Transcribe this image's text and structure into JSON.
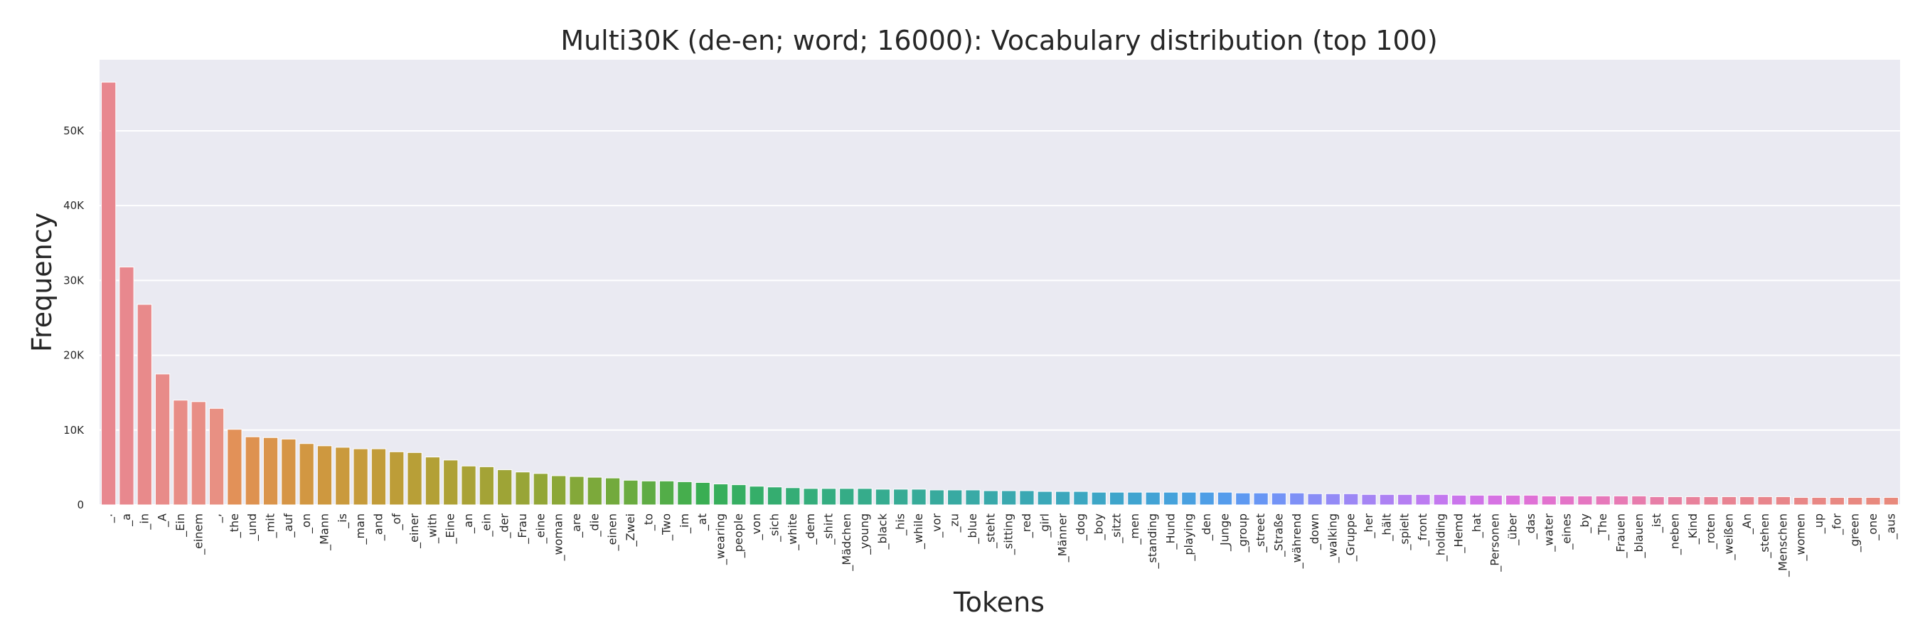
{
  "chart_data": {
    "type": "bar",
    "title": "Multi30K (de-en; word; 16000): Vocabulary distribution (top 100)",
    "xlabel": "Tokens",
    "ylabel": "Frequency",
    "ylim": [
      0,
      59500
    ],
    "yticks": [
      0,
      10000,
      20000,
      30000,
      40000,
      50000
    ],
    "ytick_labels": [
      "0",
      "10K",
      "20K",
      "30K",
      "40K",
      "50K"
    ],
    "grid": true,
    "categories": [
      "_.",
      "_a",
      "_in",
      "_A",
      "_Ein",
      "_einem",
      "_,",
      "_the",
      "_und",
      "_mit",
      "_auf",
      "_on",
      "_Mann",
      "_is",
      "_man",
      "_and",
      "_of",
      "_einer",
      "_with",
      "_Eine",
      "_an",
      "_ein",
      "_der",
      "_Frau",
      "_eine",
      "_woman",
      "_are",
      "_die",
      "_einen",
      "_Zwei",
      "_to",
      "_Two",
      "_im",
      "_at",
      "_wearing",
      "_people",
      "_von",
      "_sich",
      "_white",
      "_dem",
      "_shirt",
      "_Mädchen",
      "_young",
      "_black",
      "_his",
      "_while",
      "_vor",
      "_zu",
      "_blue",
      "_steht",
      "_sitting",
      "_red",
      "_girl",
      "_Männer",
      "_dog",
      "_boy",
      "_sitzt",
      "_men",
      "_standing",
      "_Hund",
      "_playing",
      "_den",
      "_Junge",
      "_group",
      "_street",
      "_Straße",
      "_während",
      "_down",
      "_walking",
      "_Gruppe",
      "_her",
      "_hält",
      "_spielt",
      "_front",
      "_holding",
      "_Hemd",
      "_hat",
      "_Personen",
      "_über",
      "_das",
      "_water",
      "_eines",
      "_by",
      "_The",
      "_Frauen",
      "_blauen",
      "_ist",
      "_neben",
      "_Kind",
      "_roten",
      "_weißen",
      "_An",
      "_stehen",
      "_Menschen",
      "_women",
      "_up",
      "_for",
      "_green",
      "_one",
      "_aus"
    ],
    "values": [
      56500,
      31800,
      26800,
      17500,
      14000,
      13800,
      12900,
      10100,
      9100,
      9000,
      8800,
      8200,
      7900,
      7700,
      7500,
      7500,
      7100,
      7000,
      6400,
      6000,
      5200,
      5100,
      4700,
      4400,
      4200,
      3900,
      3800,
      3700,
      3600,
      3300,
      3200,
      3200,
      3100,
      3000,
      2800,
      2700,
      2500,
      2400,
      2300,
      2200,
      2200,
      2200,
      2200,
      2100,
      2100,
      2100,
      2000,
      2000,
      2000,
      1900,
      1900,
      1900,
      1800,
      1800,
      1800,
      1700,
      1700,
      1700,
      1700,
      1700,
      1700,
      1700,
      1700,
      1600,
      1600,
      1600,
      1600,
      1500,
      1500,
      1500,
      1400,
      1400,
      1400,
      1400,
      1400,
      1300,
      1300,
      1300,
      1300,
      1300,
      1200,
      1200,
      1200,
      1200,
      1200,
      1200,
      1100,
      1100,
      1100,
      1100,
      1100,
      1100,
      1100,
      1100,
      1000,
      1000,
      1000,
      1000,
      1000,
      1000
    ],
    "colors": [
      "#e8878f",
      "#e8888e",
      "#e88a8b",
      "#e88b89",
      "#e88d87",
      "#e88e85",
      "#e89083",
      "#e29158",
      "#de9250",
      "#da944b",
      "#d69546",
      "#d29742",
      "#ce983f",
      "#ca9a3d",
      "#c69b3b",
      "#c29c39",
      "#bd9d38",
      "#b89f37",
      "#b3a036",
      "#aea136",
      "#a9a236",
      "#a4a336",
      "#9ea436",
      "#98a537",
      "#92a637",
      "#8ba738",
      "#84a839",
      "#7ca93b",
      "#73aa3d",
      "#6aab40",
      "#5fac44",
      "#53ad48",
      "#46ae4d",
      "#3aae53",
      "#37ae5b",
      "#36ae62",
      "#35ae69",
      "#35ad70",
      "#35ad76",
      "#35ad7b",
      "#35ad81",
      "#35ac86",
      "#36ac8b",
      "#36ac90",
      "#37ab95",
      "#37ab99",
      "#38aa9d",
      "#38aaa2",
      "#39aaa6",
      "#39a9aa",
      "#3aa9af",
      "#3aa8b3",
      "#3ba8b8",
      "#3ba7bc",
      "#3ca7c1",
      "#3da6c6",
      "#3ea5cb",
      "#40a4d0",
      "#42a3d5",
      "#45a2db",
      "#49a0e0",
      "#4e9ee6",
      "#559cec",
      "#5e99f1",
      "#6896f4",
      "#7393f6",
      "#7e90f6",
      "#898df6",
      "#938af6",
      "#9c87f5",
      "#a584f4",
      "#ad81f3",
      "#b57ef2",
      "#bc7bf1",
      "#c378ef",
      "#ca75ec",
      "#d073e8",
      "#d672e3",
      "#db71dd",
      "#df71d6",
      "#e272cf",
      "#e474c8",
      "#e576c1",
      "#e678ba",
      "#e77ab4",
      "#e77cad",
      "#e77ea7",
      "#e780a1",
      "#e8819b",
      "#e88296",
      "#e88392",
      "#e8848f",
      "#e8858c",
      "#e88589",
      "#e88686",
      "#e88784",
      "#e88882",
      "#e88880",
      "#e8897e",
      "#e8897c"
    ]
  }
}
